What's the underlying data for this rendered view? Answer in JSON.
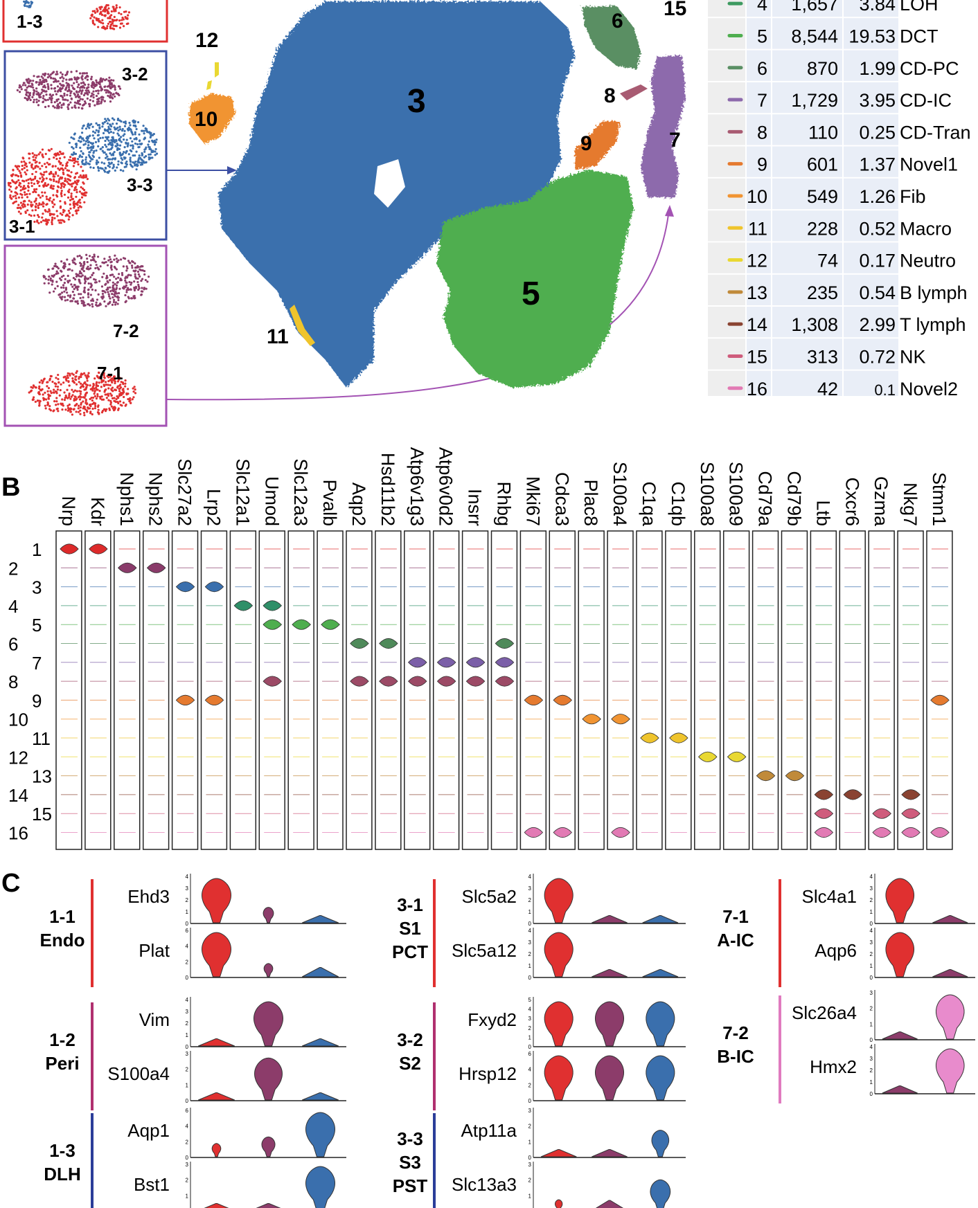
{
  "panel_a": {
    "inset_top": {
      "label_1_3": "1-3",
      "color": "#e03030"
    },
    "inset_3": {
      "label_3_2": "3-2",
      "label_3_3": "3-3",
      "label_3_1": "3-1",
      "color": "#3c4fa3"
    },
    "inset_7": {
      "label_7_2": "7-2",
      "label_7_1": "7-1",
      "color": "#a352b3"
    },
    "cluster_labels": {
      "c3": "3",
      "c5": "5",
      "c6": "6",
      "c7": "7",
      "c8": "8",
      "c9": "9",
      "c10": "10",
      "c11": "11",
      "c12": "12",
      "c15": "15"
    },
    "cluster_colors": {
      "c3": "#3a6fad",
      "c5": "#4fae4f",
      "c6": "#5a8f64",
      "c7": "#8d6aac",
      "c8": "#a85b72",
      "c9": "#e57a2f",
      "c10": "#f19432",
      "c11": "#efc42c",
      "c12": "#e9d832"
    },
    "table": {
      "rows": [
        {
          "id": "4",
          "count": "1,657",
          "pct": "3.84",
          "name": "LOH",
          "color": "#3d9a60"
        },
        {
          "id": "5",
          "count": "8,544",
          "pct": "19.53",
          "name": "DCT",
          "color": "#4fae4f"
        },
        {
          "id": "6",
          "count": "870",
          "pct": "1.99",
          "name": "CD-PC",
          "color": "#5a8f64"
        },
        {
          "id": "7",
          "count": "1,729",
          "pct": "3.95",
          "name": "CD-IC",
          "color": "#8d6aac"
        },
        {
          "id": "8",
          "count": "110",
          "pct": "0.25",
          "name": "CD-Tran",
          "color": "#a85b72"
        },
        {
          "id": "9",
          "count": "601",
          "pct": "1.37",
          "name": "Novel1",
          "color": "#e57a2f"
        },
        {
          "id": "10",
          "count": "549",
          "pct": "1.26",
          "name": "Fib",
          "color": "#f19432"
        },
        {
          "id": "11",
          "count": "228",
          "pct": "0.52",
          "name": "Macro",
          "color": "#efc42c"
        },
        {
          "id": "12",
          "count": "74",
          "pct": "0.17",
          "name": "Neutro",
          "color": "#e9d832"
        },
        {
          "id": "13",
          "count": "235",
          "pct": "0.54",
          "name": "B lymph",
          "color": "#c08a3a"
        },
        {
          "id": "14",
          "count": "1,308",
          "pct": "2.99",
          "name": "T lymph",
          "color": "#8a4332"
        },
        {
          "id": "15",
          "count": "313",
          "pct": "0.72",
          "name": "NK",
          "color": "#cf5c7c"
        },
        {
          "id": "16",
          "count": "42",
          "pct": "0.1",
          "name": "Novel2",
          "color": "#e27ab4"
        }
      ]
    }
  },
  "panel_b": {
    "letter": "B",
    "genes": [
      "Nrp",
      "Kdr",
      "Nphs1",
      "Nphs2",
      "Slc27a2",
      "Lrp2",
      "Slc12a1",
      "Umod",
      "Slc12a3",
      "Pvalb",
      "Aqp2",
      "Hsd11b2",
      "Atp6v1g3",
      "Atp6v0d2",
      "Insrr",
      "Rhbg",
      "Mki67",
      "Cdca3",
      "Plac8",
      "S100a4",
      "C1qa",
      "C1qb",
      "S100a8",
      "S100a9",
      "Cd79a",
      "Cd79b",
      "Ltb",
      "Cxcr6",
      "Gzma",
      "Nkg7",
      "Stmn1"
    ],
    "clusters": [
      "1",
      "2",
      "3",
      "4",
      "5",
      "6",
      "7",
      "8",
      "9",
      "10",
      "11",
      "12",
      "13",
      "14",
      "15",
      "16"
    ],
    "cluster_colors": [
      "#dd2a2a",
      "#8a3b6a",
      "#3a6fad",
      "#2f8f68",
      "#4fae4f",
      "#4f8a5a",
      "#7b5fa8",
      "#9c4a66",
      "#e57a2f",
      "#f19432",
      "#efc42c",
      "#e9d832",
      "#c08a3a",
      "#8a4332",
      "#cf5c7c",
      "#e27ab4"
    ],
    "strong": [
      [
        0,
        0
      ],
      [
        1,
        0
      ],
      [
        2,
        1
      ],
      [
        3,
        1
      ],
      [
        4,
        2
      ],
      [
        5,
        2
      ],
      [
        6,
        3
      ],
      [
        7,
        3
      ],
      [
        7,
        4
      ],
      [
        8,
        4
      ],
      [
        9,
        4
      ],
      [
        10,
        5
      ],
      [
        11,
        5
      ],
      [
        15,
        5
      ],
      [
        12,
        6
      ],
      [
        13,
        6
      ],
      [
        14,
        6
      ],
      [
        15,
        6
      ],
      [
        10,
        7
      ],
      [
        11,
        7
      ],
      [
        12,
        7
      ],
      [
        13,
        7
      ],
      [
        14,
        7
      ],
      [
        15,
        7
      ],
      [
        7,
        7
      ],
      [
        4,
        8
      ],
      [
        5,
        8
      ],
      [
        16,
        8
      ],
      [
        17,
        8
      ],
      [
        30,
        8
      ],
      [
        18,
        9
      ],
      [
        19,
        9
      ],
      [
        20,
        10
      ],
      [
        21,
        10
      ],
      [
        22,
        11
      ],
      [
        23,
        11
      ],
      [
        24,
        12
      ],
      [
        25,
        12
      ],
      [
        26,
        13
      ],
      [
        27,
        13
      ],
      [
        29,
        13
      ],
      [
        28,
        14
      ],
      [
        29,
        14
      ],
      [
        26,
        14
      ],
      [
        16,
        15
      ],
      [
        17,
        15
      ],
      [
        19,
        15
      ],
      [
        26,
        15
      ],
      [
        28,
        15
      ],
      [
        29,
        15
      ],
      [
        30,
        15
      ]
    ]
  },
  "panel_c": {
    "letter": "C",
    "groups": [
      {
        "id": "1-1",
        "name": "Endo",
        "bar_color": "#e03030",
        "genes": [
          {
            "name": "Ehd3",
            "ticks": [
              "4",
              "3",
              "2",
              "1",
              "0"
            ],
            "sizes": [
              1.0,
              0.35,
              0.05
            ]
          },
          {
            "name": "Plat",
            "ticks": [
              "6",
              "4",
              "2",
              "0"
            ],
            "sizes": [
              1.0,
              0.3,
              0.15
            ]
          }
        ]
      },
      {
        "id": "1-2",
        "name": "Peri",
        "bar_color": "#b0306f",
        "genes": [
          {
            "name": "Vim",
            "ticks": [
              "4",
              "3",
              "2",
              "1",
              "0"
            ],
            "sizes": [
              0.05,
              1.0,
              0.05
            ]
          },
          {
            "name": "S100a4",
            "ticks": [
              "3",
              "2",
              "1",
              "0"
            ],
            "sizes": [
              0.05,
              0.95,
              0.05
            ]
          }
        ]
      },
      {
        "id": "1-3",
        "name": "DLH",
        "bar_color": "#2b3d99",
        "genes": [
          {
            "name": "Aqp1",
            "ticks": [
              "6",
              "4",
              "2",
              "0"
            ],
            "sizes": [
              0.3,
              0.45,
              1.0
            ]
          },
          {
            "name": "Bst1",
            "ticks": [
              "3",
              "2",
              "1",
              "0"
            ],
            "sizes": [
              0.05,
              0.05,
              1.0
            ]
          }
        ]
      },
      {
        "id": "3-1",
        "name": "S1\nPCT",
        "bar_color": "#e03030",
        "genes": [
          {
            "name": "Slc5a2",
            "ticks": [
              "4",
              "3",
              "2",
              "1",
              "0"
            ],
            "sizes": [
              1.0,
              0.05,
              0.05
            ]
          },
          {
            "name": "Slc5a12",
            "ticks": [
              "4",
              "3",
              "2",
              "1",
              "0"
            ],
            "sizes": [
              1.0,
              0.05,
              0.05
            ]
          }
        ]
      },
      {
        "id": "3-2",
        "name": "S2",
        "bar_color": "#b0306f",
        "genes": [
          {
            "name": "Fxyd2",
            "ticks": [
              "5",
              "4",
              "3",
              "2",
              "1",
              "0"
            ],
            "sizes": [
              1.0,
              1.0,
              1.0
            ]
          },
          {
            "name": "Hrsp12",
            "ticks": [
              "6",
              "4",
              "2",
              "0"
            ],
            "sizes": [
              1.0,
              1.0,
              1.0
            ]
          }
        ]
      },
      {
        "id": "3-3",
        "name": "S3\nPST",
        "bar_color": "#2b3d99",
        "genes": [
          {
            "name": "Atp11a",
            "ticks": [
              "3",
              "2",
              "1",
              "0"
            ],
            "sizes": [
              0.05,
              0.05,
              0.6
            ]
          },
          {
            "name": "Slc13a3",
            "ticks": [
              "3",
              "2",
              "1",
              "0"
            ],
            "sizes": [
              0.25,
              0.2,
              0.7
            ]
          }
        ]
      },
      {
        "id": "7-1",
        "name": "A-IC",
        "bar_color": "#e03030",
        "genes": [
          {
            "name": "Slc4a1",
            "ticks": [
              "4",
              "3",
              "2",
              "1",
              "0"
            ],
            "sizes": [
              1.0,
              0.05
            ]
          },
          {
            "name": "Aqp6",
            "ticks": [
              "4",
              "3",
              "2",
              "1",
              "0"
            ],
            "sizes": [
              1.0,
              0.05
            ]
          }
        ]
      },
      {
        "id": "7-2",
        "name": "B-IC",
        "bar_color": "#e07bbf",
        "genes": [
          {
            "name": "Slc26a4",
            "ticks": [
              "3",
              "2",
              "1",
              "0"
            ],
            "sizes": [
              0.05,
              1.0
            ]
          },
          {
            "name": "Hmx2",
            "ticks": [
              "4",
              "3",
              "2",
              "1",
              "0"
            ],
            "sizes": [
              0.05,
              1.0
            ]
          }
        ]
      }
    ],
    "subcolors_three": [
      "#e03030",
      "#8c3c6a",
      "#3a6fad"
    ],
    "subcolors_two_a": [
      "#e03030",
      "#8c3c6a"
    ],
    "subcolors_two_b": [
      "#8c3c6a",
      "#e88bcc"
    ]
  }
}
